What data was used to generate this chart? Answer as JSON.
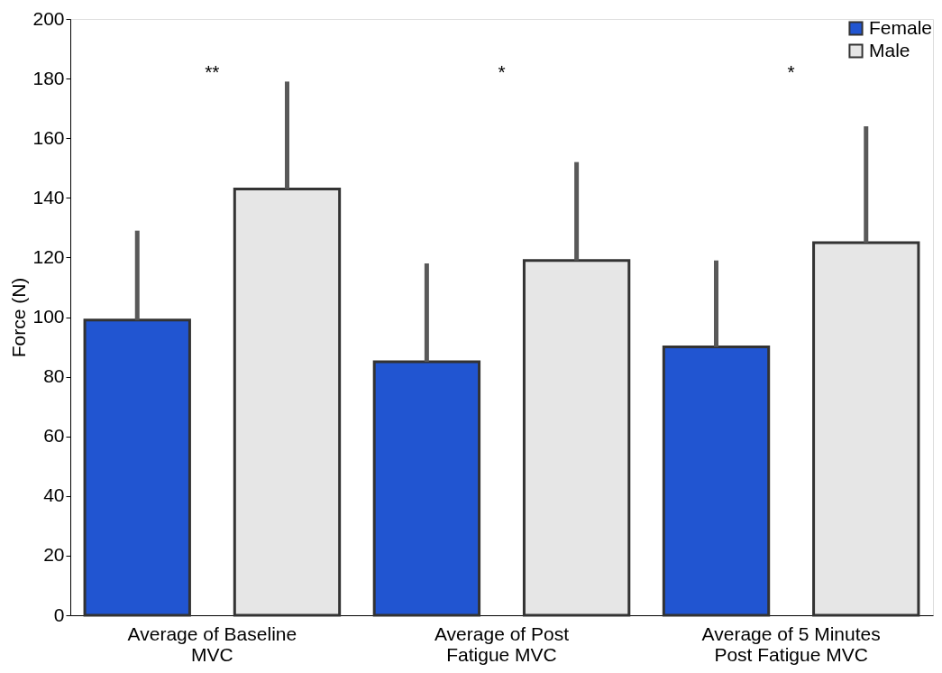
{
  "chart_data": {
    "type": "bar",
    "ylabel": "Force (N)",
    "categories": [
      "Average of Baseline MVC",
      "Average of Post Fatigue MVC",
      "Average of 5 Minutes Post Fatigue MVC"
    ],
    "series": [
      {
        "name": "Female",
        "color": "#2155d1",
        "values": [
          99,
          85,
          90
        ],
        "errors": [
          30,
          33,
          29
        ]
      },
      {
        "name": "Male",
        "color": "#e6e6e6",
        "values": [
          143,
          119,
          125
        ],
        "errors": [
          36,
          33,
          39
        ]
      }
    ],
    "ylim": [
      0,
      200
    ],
    "yticks": [
      0,
      20,
      40,
      60,
      80,
      100,
      120,
      140,
      160,
      180,
      200
    ],
    "grid": false,
    "legend": "top right",
    "annotations": [
      "**",
      "*",
      "*"
    ]
  }
}
